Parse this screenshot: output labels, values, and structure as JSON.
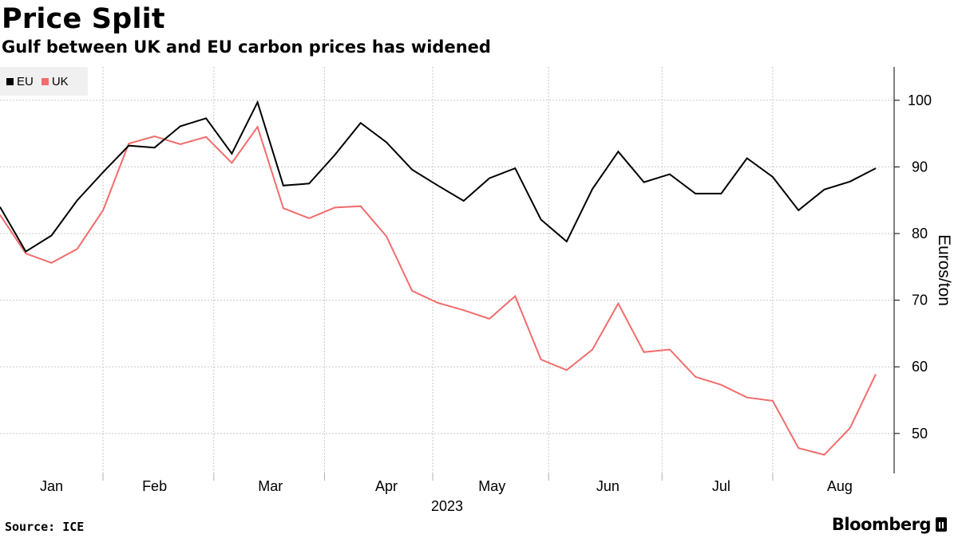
{
  "header": {
    "title": "Price Split",
    "subtitle": "Gulf between UK and EU carbon prices has widened"
  },
  "legend": [
    {
      "label": "EU",
      "color": "#000000"
    },
    {
      "label": "UK",
      "color": "#f26c6c"
    }
  ],
  "footer": {
    "source": "Source: ICE",
    "brand": "Bloomberg"
  },
  "chart_data": {
    "type": "line",
    "title": "Price Split",
    "subtitle": "Gulf between UK and EU carbon prices has widened",
    "xlabel": "2023",
    "ylabel": "Euros/ton",
    "ylim": [
      44,
      105
    ],
    "yticks": [
      50,
      60,
      70,
      80,
      90,
      100
    ],
    "grid": true,
    "legend_position": "top-left",
    "x_unit": "week index (2023, weekly)",
    "xlim": [
      0,
      35.5
    ],
    "month_boundaries": [
      4,
      8.3,
      12.6,
      16.8,
      21.3,
      25.7,
      30
    ],
    "month_labels": [
      {
        "label": "Jan",
        "x": 2
      },
      {
        "label": "Feb",
        "x": 6
      },
      {
        "label": "Mar",
        "x": 10.5
      },
      {
        "label": "Apr",
        "x": 15
      },
      {
        "label": "May",
        "x": 19.1
      },
      {
        "label": "Jun",
        "x": 23.6
      },
      {
        "label": "Jul",
        "x": 28
      },
      {
        "label": "Aug",
        "x": 32.6
      }
    ],
    "series": [
      {
        "name": "EU",
        "color": "#000000",
        "x": [
          0,
          1,
          2,
          3,
          4,
          5,
          6,
          7,
          8,
          9,
          10,
          11,
          12,
          13,
          14,
          15,
          16,
          17,
          18,
          19,
          20,
          21,
          22,
          23,
          24,
          25,
          26,
          27,
          28,
          29,
          30,
          31,
          32,
          33,
          34
        ],
        "values": [
          84,
          77.3,
          79.7,
          85,
          89.2,
          93.2,
          92.9,
          96.1,
          97.3,
          92,
          99.7,
          87.2,
          87.5,
          91.8,
          96.6,
          93.7,
          89.6,
          87.2,
          84.9,
          88.3,
          89.8,
          82.1,
          78.8,
          86.7,
          92.3,
          87.7,
          88.9,
          86,
          86,
          91.3,
          88.5,
          83.5,
          86.6,
          87.8,
          89.8
        ]
      },
      {
        "name": "UK",
        "color": "#f26c6c",
        "x": [
          0,
          1,
          2,
          3,
          4,
          5,
          6,
          7,
          8,
          9,
          10,
          11,
          12,
          13,
          14,
          15,
          16,
          17,
          18,
          19,
          20,
          21,
          22,
          23,
          24,
          25,
          26,
          27,
          28,
          29,
          30,
          31,
          32,
          33,
          34
        ],
        "values": [
          82.8,
          77,
          75.6,
          77.7,
          83.5,
          93.5,
          94.6,
          93.4,
          94.5,
          90.6,
          96,
          83.8,
          82.3,
          83.9,
          84.1,
          79.6,
          71.4,
          69.6,
          68.5,
          67.2,
          70.6,
          61.1,
          59.5,
          62.6,
          69.5,
          62.2,
          62.6,
          58.5,
          57.3,
          55.4,
          54.9,
          47.8,
          46.8,
          50.8,
          58.9
        ]
      }
    ]
  }
}
